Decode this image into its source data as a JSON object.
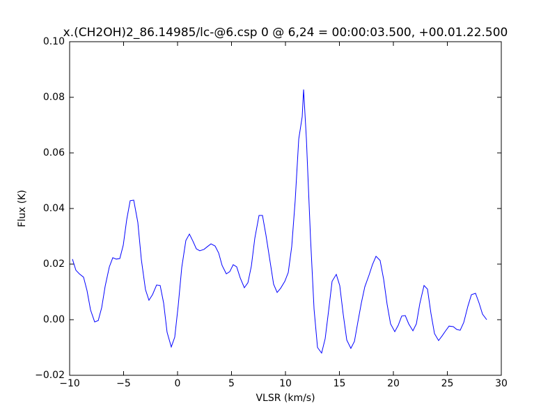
{
  "chart_data": {
    "type": "line",
    "title": "x.(CH2OH)2_86.14985/lc-@6.csp 0 @ 6,24 = 00:00:03.500, +00.01.22.500",
    "xlabel": "VLSR (km/s)",
    "ylabel": "Flux (K)",
    "color": "#0000ff",
    "x": [
      -9.74,
      -9.42,
      -9.1,
      -8.71,
      -8.39,
      -8.06,
      -7.68,
      -7.35,
      -7.03,
      -6.71,
      -6.32,
      -6.0,
      -5.68,
      -5.35,
      -5.03,
      -4.71,
      -4.39,
      -4.06,
      -3.68,
      -3.35,
      -2.97,
      -2.65,
      -2.32,
      -1.94,
      -1.61,
      -1.29,
      -0.97,
      -0.58,
      -0.26,
      0.06,
      0.39,
      0.77,
      1.1,
      1.42,
      1.74,
      2.06,
      2.45,
      2.77,
      3.1,
      3.48,
      3.81,
      4.13,
      4.52,
      4.84,
      5.16,
      5.48,
      5.81,
      6.19,
      6.52,
      6.84,
      7.16,
      7.55,
      7.87,
      8.19,
      8.58,
      8.9,
      9.23,
      9.55,
      9.94,
      10.26,
      10.58,
      10.9,
      11.23,
      11.55,
      11.68,
      11.94,
      12.32,
      12.65,
      12.97,
      13.35,
      13.68,
      14.0,
      14.32,
      14.71,
      15.03,
      15.35,
      15.68,
      16.06,
      16.39,
      16.71,
      17.03,
      17.35,
      17.74,
      18.06,
      18.39,
      18.77,
      19.1,
      19.42,
      19.74,
      20.13,
      20.45,
      20.77,
      21.1,
      21.42,
      21.81,
      22.13,
      22.45,
      22.84,
      23.16,
      23.48,
      23.81,
      24.19,
      24.52,
      24.84,
      25.16,
      25.55,
      25.87,
      26.19,
      26.52,
      26.9,
      27.23,
      27.61,
      27.94,
      28.26,
      28.65
    ],
    "values": [
      0.0218,
      0.0178,
      0.0165,
      0.0153,
      0.0105,
      0.0035,
      -0.0008,
      -0.0003,
      0.0043,
      0.012,
      0.019,
      0.0223,
      0.0218,
      0.022,
      0.0268,
      0.036,
      0.0428,
      0.043,
      0.035,
      0.0215,
      0.0108,
      0.007,
      0.009,
      0.0125,
      0.0123,
      0.006,
      -0.0045,
      -0.0098,
      -0.0063,
      0.005,
      0.0188,
      0.0285,
      0.0308,
      0.0283,
      0.0255,
      0.0248,
      0.0253,
      0.0263,
      0.0273,
      0.0265,
      0.024,
      0.0195,
      0.0165,
      0.0173,
      0.0198,
      0.019,
      0.015,
      0.0115,
      0.0133,
      0.0193,
      0.0293,
      0.0375,
      0.0375,
      0.0305,
      0.0208,
      0.0128,
      0.0098,
      0.0113,
      0.0138,
      0.017,
      0.0263,
      0.0428,
      0.065,
      0.073,
      0.0828,
      0.065,
      0.0295,
      0.0038,
      -0.01,
      -0.012,
      -0.0068,
      0.0033,
      0.0138,
      0.0163,
      0.0123,
      0.002,
      -0.0073,
      -0.0103,
      -0.0078,
      -0.0008,
      0.006,
      0.0118,
      0.016,
      0.0198,
      0.0228,
      0.0213,
      0.0145,
      0.0055,
      -0.0015,
      -0.0043,
      -0.002,
      0.0013,
      0.0015,
      -0.0015,
      -0.004,
      -0.0015,
      0.0058,
      0.0123,
      0.011,
      0.0023,
      -0.005,
      -0.0075,
      -0.0058,
      -0.004,
      -0.0023,
      -0.0025,
      -0.0035,
      -0.0038,
      -0.001,
      0.0048,
      0.009,
      0.0095,
      0.006,
      0.002,
      0.0
    ],
    "xlim": [
      -10,
      30
    ],
    "xticks": [
      {
        "value": -10,
        "label": "−10"
      },
      {
        "value": -5,
        "label": "−5"
      },
      0,
      5,
      10,
      15,
      20,
      25,
      30
    ],
    "ylim": [
      -0.02,
      0.1
    ],
    "yticks": [
      {
        "value": -0.02,
        "label": "−0.02"
      },
      {
        "value": 0,
        "label": "0.00"
      },
      {
        "value": 0.02,
        "label": "0.02"
      },
      {
        "value": 0.04,
        "label": "0.04"
      },
      {
        "value": 0.06,
        "label": "0.06"
      },
      {
        "value": 0.08,
        "label": "0.08"
      },
      {
        "value": 0.1,
        "label": "0.10"
      }
    ]
  }
}
